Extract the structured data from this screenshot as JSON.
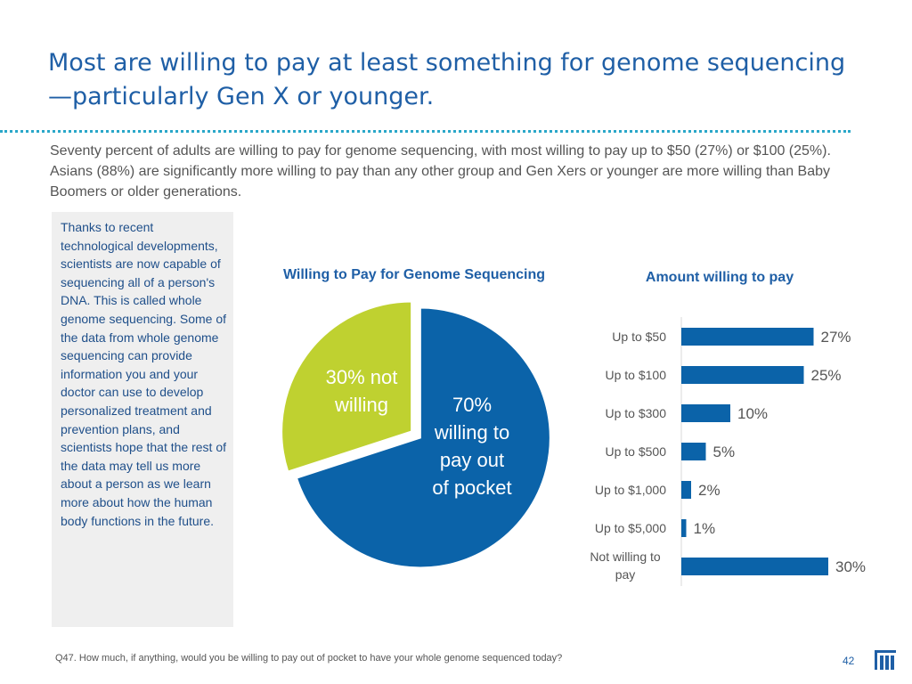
{
  "header": {
    "title": "Most are willing to pay at least something for genome sequencing—particularly Gen X or younger."
  },
  "summary": "Seventy percent of adults are willing to pay for genome sequencing, with most willing to pay up to $50 (27%) or $100 (25%). Asians (88%) are significantly more willing to pay than any other group and Gen Xers or younger are more willing than Baby Boomers or older generations.",
  "sidebar": {
    "text": "Thanks to recent technological developments, scientists are now capable of sequencing all of a person's DNA. This is called whole genome sequencing. Some of the data from whole genome sequencing can provide information you and your doctor can use to develop personalized treatment and prevention plans, and scientists hope that the rest of the data may tell us more about a person as we learn more about how the human body functions in the future."
  },
  "chart_data": [
    {
      "type": "pie",
      "title": "Willing to Pay for Genome Sequencing",
      "slices": [
        {
          "label": "70% willing to pay out of pocket",
          "label_lines": [
            "70%",
            "willing to",
            "pay out",
            "of pocket"
          ],
          "value": 70,
          "color": "#0b63a9"
        },
        {
          "label": "30% not willing",
          "label_lines": [
            "30% not",
            "willing"
          ],
          "value": 30,
          "color": "#bfd130"
        }
      ]
    },
    {
      "type": "bar",
      "orientation": "horizontal",
      "title": "Amount willing to pay",
      "categories": [
        "Up to $50",
        "Up to $100",
        "Up to $300",
        "Up to $500",
        "Up to $1,000",
        "Up to $5,000",
        "Not willing to pay"
      ],
      "values": [
        27,
        25,
        10,
        5,
        2,
        1,
        30
      ],
      "value_labels": [
        "27%",
        "25%",
        "10%",
        "5%",
        "2%",
        "1%",
        "30%"
      ],
      "color": "#0b63a9"
    }
  ],
  "footer": {
    "question": "Q47. How much, if anything, would you be willing to pay out of pocket to have your whole genome sequenced today?",
    "page": "42"
  },
  "colors": {
    "title": "#1f5fa6",
    "rule": "#2aa7c9",
    "bar": "#0b63a9",
    "pie_secondary": "#bfd130"
  },
  "logo": {
    "icon": "bars-columns-logo-icon"
  }
}
